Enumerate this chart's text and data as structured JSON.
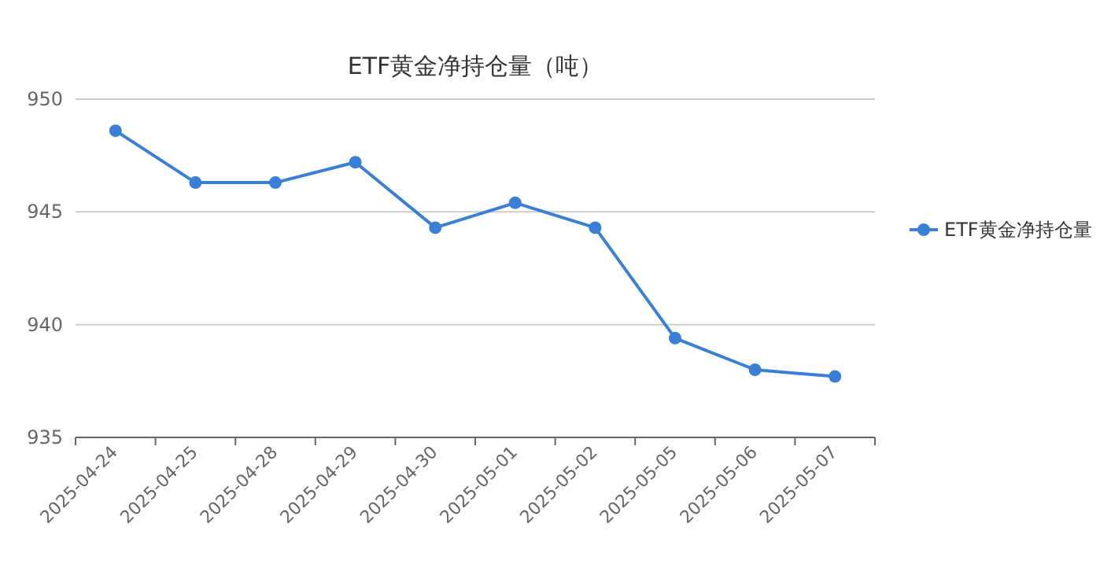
{
  "chart_data": {
    "type": "line",
    "title": "ETF黄金净持仓量（吨）",
    "categories": [
      "2025-04-24",
      "2025-04-25",
      "2025-04-28",
      "2025-04-29",
      "2025-04-30",
      "2025-05-01",
      "2025-05-02",
      "2025-05-05",
      "2025-05-06",
      "2025-05-07"
    ],
    "series": [
      {
        "name": "ETF黄金净持仓量",
        "color": "#3a7fd5",
        "values": [
          948.6,
          946.3,
          946.3,
          947.2,
          944.3,
          945.4,
          944.3,
          939.4,
          938.0,
          937.7
        ]
      }
    ],
    "ylim": [
      935,
      950
    ],
    "yticks": [
      935,
      940,
      945,
      950
    ],
    "grid": "y",
    "legend": "right",
    "marker": "circle"
  }
}
